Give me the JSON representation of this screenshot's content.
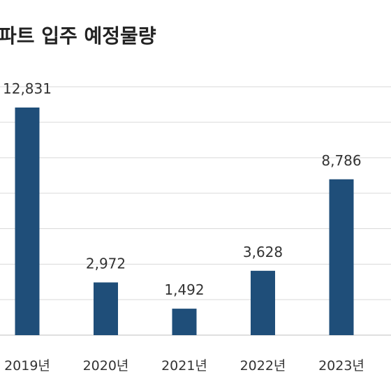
{
  "chart_data": {
    "type": "bar",
    "title": "파트 입주 예정물량",
    "categories": [
      "2019년",
      "2020년",
      "2021년",
      "2022년",
      "2023년"
    ],
    "series": [
      {
        "values": [
          12831,
          2972,
          1492,
          3628,
          8786
        ]
      }
    ],
    "data_labels": [
      "12,831",
      "2,972",
      "1,492",
      "3,628",
      "8,786"
    ],
    "ylim": [
      0,
      14000
    ],
    "grid": true,
    "legend": "none",
    "bar_color": "#1f4e79",
    "grid_color": "#d9d9d9"
  }
}
